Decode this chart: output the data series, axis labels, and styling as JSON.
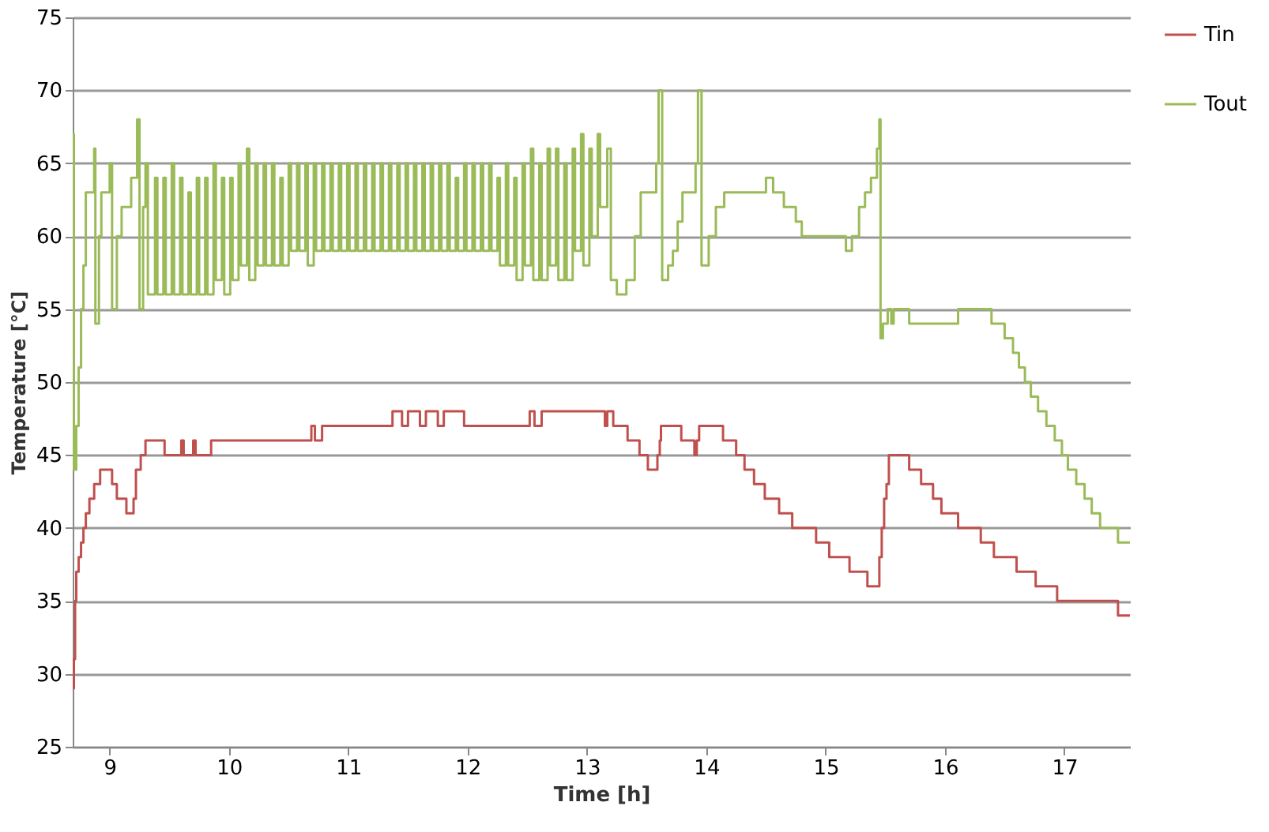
{
  "chart_data": {
    "type": "step",
    "xlabel": "Time [h]",
    "ylabel": "Temperature [°C]",
    "xlim": [
      8.69,
      17.55
    ],
    "ylim": [
      25,
      75
    ],
    "xticks": [
      9,
      10,
      11,
      12,
      13,
      14,
      15,
      16,
      17
    ],
    "legend": "right",
    "yticks": [
      25,
      30,
      35,
      40,
      45,
      50,
      55,
      60,
      65,
      70,
      75
    ],
    "grid": "y",
    "line_style": "solid",
    "marker": "none",
    "series": [
      {
        "name": "Tin",
        "color": "#c0504d",
        "x": [
          8.69,
          8.7,
          8.71,
          8.72,
          8.74,
          8.76,
          8.78,
          8.8,
          8.83,
          8.87,
          8.92,
          9.02,
          9.06,
          9.14,
          9.2,
          9.22,
          9.26,
          9.3,
          9.46,
          9.6,
          9.62,
          9.7,
          9.72,
          9.85,
          9.88,
          10.69,
          10.72,
          10.78,
          11.37,
          11.45,
          11.5,
          11.6,
          11.65,
          11.75,
          11.8,
          11.97,
          12.52,
          12.56,
          12.62,
          13.15,
          13.17,
          13.22,
          13.34,
          13.44,
          13.51,
          13.59,
          13.61,
          13.62,
          13.79,
          13.9,
          13.92,
          13.94,
          14.14,
          14.25,
          14.32,
          14.4,
          14.49,
          14.61,
          14.72,
          14.92,
          15.03,
          15.2,
          15.35,
          15.45,
          15.47,
          15.49,
          15.51,
          15.53,
          15.7,
          15.8,
          15.9,
          15.97,
          16.11,
          16.3,
          16.41,
          16.6,
          16.76,
          16.94,
          17.45,
          17.55
        ],
        "values": [
          29,
          31,
          35,
          37,
          38,
          39,
          40,
          41,
          42,
          43,
          44,
          43,
          42,
          41,
          42,
          44,
          45,
          46,
          45,
          46,
          45,
          46,
          45,
          46,
          46,
          47,
          46,
          47,
          48,
          47,
          48,
          47,
          48,
          47,
          48,
          47,
          48,
          47,
          48,
          47,
          48,
          47,
          46,
          45,
          44,
          45,
          46,
          47,
          46,
          45,
          46,
          47,
          46,
          45,
          44,
          43,
          42,
          41,
          40,
          39,
          38,
          37,
          36,
          38,
          40,
          42,
          43,
          45,
          44,
          43,
          42,
          41,
          40,
          39,
          38,
          37,
          36,
          35,
          34,
          34
        ]
      },
      {
        "name": "Tout",
        "color": "#9bbb59",
        "x": [
          8.69,
          8.7,
          8.72,
          8.74,
          8.76,
          8.78,
          8.8,
          8.87,
          8.88,
          8.91,
          8.93,
          9.0,
          9.02,
          9.06,
          9.1,
          9.18,
          9.23,
          9.25,
          9.28,
          9.3,
          9.32,
          9.38,
          9.4,
          9.45,
          9.47,
          9.52,
          9.54,
          9.59,
          9.61,
          9.66,
          9.68,
          9.73,
          9.75,
          9.8,
          9.82,
          9.87,
          9.89,
          9.94,
          9.96,
          10.01,
          10.03,
          10.08,
          10.1,
          10.15,
          10.17,
          10.22,
          10.24,
          10.29,
          10.31,
          10.36,
          10.38,
          10.43,
          10.45,
          10.5,
          10.52,
          10.57,
          10.59,
          10.64,
          10.66,
          10.71,
          10.73,
          10.78,
          10.8,
          10.85,
          10.87,
          10.92,
          10.94,
          10.99,
          11.01,
          11.06,
          11.08,
          11.13,
          11.15,
          11.2,
          11.22,
          11.27,
          11.29,
          11.34,
          11.36,
          11.41,
          11.43,
          11.48,
          11.5,
          11.55,
          11.57,
          11.62,
          11.64,
          11.69,
          11.71,
          11.76,
          11.78,
          11.83,
          11.85,
          11.9,
          11.92,
          11.97,
          11.99,
          12.04,
          12.06,
          12.11,
          12.13,
          12.18,
          12.2,
          12.25,
          12.27,
          12.32,
          12.34,
          12.39,
          12.41,
          12.46,
          12.48,
          12.53,
          12.55,
          12.6,
          12.62,
          12.67,
          12.69,
          12.74,
          12.76,
          12.81,
          12.83,
          12.88,
          12.9,
          12.95,
          12.97,
          13.02,
          13.04,
          13.09,
          13.11,
          13.17,
          13.2,
          13.25,
          13.33,
          13.4,
          13.45,
          13.58,
          13.6,
          13.63,
          13.68,
          13.72,
          13.76,
          13.8,
          13.91,
          13.93,
          13.96,
          14.02,
          14.08,
          14.15,
          14.5,
          14.56,
          14.65,
          14.75,
          14.8,
          15.17,
          15.22,
          15.28,
          15.33,
          15.38,
          15.43,
          15.45,
          15.46,
          15.48,
          15.52,
          15.55,
          15.57,
          15.7,
          16.11,
          16.39,
          16.5,
          16.57,
          16.62,
          16.67,
          16.72,
          16.78,
          16.85,
          16.92,
          16.98,
          17.03,
          17.1,
          17.17,
          17.23,
          17.3,
          17.45,
          17.55
        ],
        "values": [
          67,
          44,
          47,
          51,
          55,
          58,
          63,
          66,
          54,
          60,
          63,
          65,
          55,
          60,
          62,
          64,
          68,
          55,
          62,
          65,
          56,
          64,
          56,
          64,
          56,
          65,
          56,
          64,
          56,
          63,
          56,
          64,
          56,
          64,
          56,
          65,
          57,
          64,
          56,
          64,
          57,
          65,
          58,
          66,
          57,
          65,
          58,
          65,
          58,
          65,
          58,
          64,
          58,
          65,
          59,
          65,
          59,
          65,
          58,
          65,
          59,
          65,
          59,
          65,
          59,
          65,
          59,
          65,
          59,
          65,
          59,
          65,
          59,
          65,
          59,
          65,
          59,
          65,
          59,
          65,
          59,
          65,
          59,
          65,
          59,
          65,
          59,
          65,
          59,
          65,
          59,
          65,
          59,
          64,
          59,
          65,
          59,
          65,
          59,
          65,
          59,
          65,
          59,
          64,
          58,
          65,
          58,
          64,
          57,
          65,
          58,
          66,
          57,
          65,
          57,
          66,
          58,
          66,
          57,
          65,
          57,
          66,
          59,
          67,
          58,
          66,
          60,
          67,
          62,
          66,
          57,
          56,
          57,
          60,
          63,
          65,
          70,
          57,
          58,
          59,
          61,
          63,
          65,
          70,
          58,
          60,
          62,
          63,
          64,
          63,
          62,
          61,
          60,
          59,
          60,
          62,
          63,
          64,
          66,
          68,
          53,
          54,
          55,
          54,
          55,
          54,
          55,
          54,
          53,
          52,
          51,
          50,
          49,
          48,
          47,
          46,
          45,
          44,
          43,
          42,
          41,
          40,
          39,
          39
        ]
      }
    ]
  }
}
